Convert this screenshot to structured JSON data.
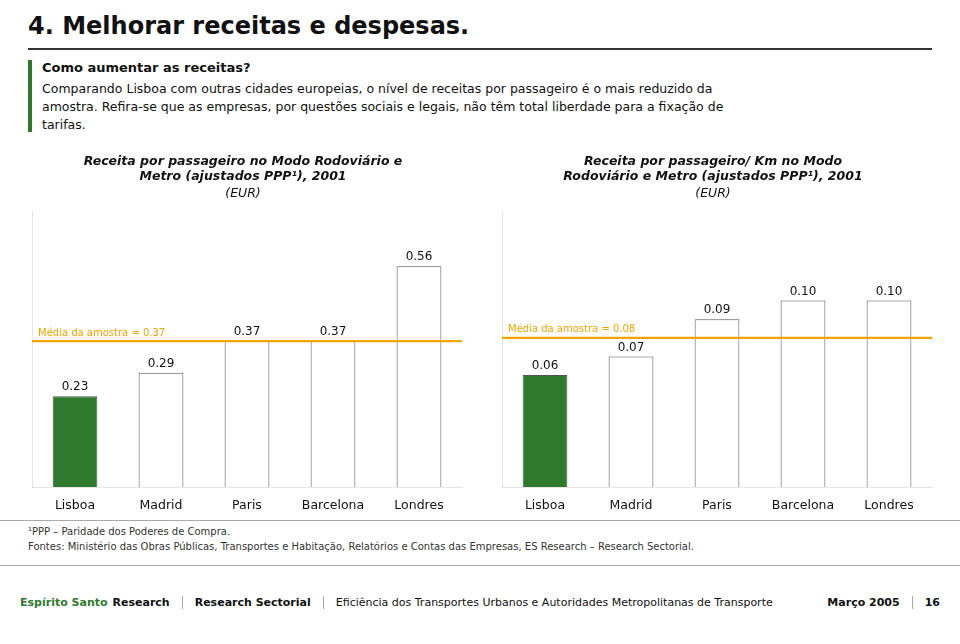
{
  "title": "4. Melhorar receitas e despesas.",
  "subtitle": "Como aumentar as receitas?",
  "text": [
    "Comparando Lisboa com outras cidades europeias, o nível de receitas por passageiro é o mais reduzido da",
    "amostra. Refira-se que as empresas, por questões sociais e legais, não têm total liberdade para a fixação de",
    "tarifas."
  ],
  "chart_data": [
    {
      "type": "bar",
      "title": [
        "Receita por passageiro no Modo Rodoviário e",
        "Metro (ajustados PPP¹), 2001"
      ],
      "subtitle": "(EUR)",
      "categories": [
        "Lisboa",
        "Madrid",
        "Paris",
        "Barcelona",
        "Londres"
      ],
      "values": [
        0.23,
        0.29,
        0.37,
        0.37,
        0.56
      ],
      "colors": [
        "#2d7a2d",
        "#ffffff",
        "#ffffff",
        "#ffffff",
        "#ffffff"
      ],
      "ylim": [
        0,
        0.7
      ],
      "lines": [
        {
          "value": 0.37,
          "label": "Média da amostra = 0.37",
          "color": "#f0a500"
        }
      ],
      "data_labels": true,
      "tick_labels": "x",
      "grid": false
    },
    {
      "type": "bar",
      "title": [
        "Receita por passageiro/ Km no Modo",
        "Rodoviário e Metro (ajustados PPP¹), 2001"
      ],
      "subtitle": "(EUR)",
      "categories": [
        "Lisboa",
        "Madrid",
        "Paris",
        "Barcelona",
        "Londres"
      ],
      "values": [
        0.06,
        0.07,
        0.09,
        0.1,
        0.1
      ],
      "value_labels": [
        "0.06",
        "0.07",
        "0.09",
        "0.10",
        "0.10"
      ],
      "colors": [
        "#2d7a2d",
        "#ffffff",
        "#ffffff",
        "#ffffff",
        "#ffffff"
      ],
      "ylim": [
        0,
        0.148
      ],
      "lines": [
        {
          "value": 0.08,
          "label": "Média da amostra = 0.08",
          "color": "#f0a500"
        }
      ],
      "data_labels": true,
      "tick_labels": "x",
      "grid": false
    }
  ],
  "notes": [
    "¹PPP – Paridade dos Poderes de Compra.",
    "Fontes: Ministério das Obras Públicas, Transportes e Habitação, Relatórios e Contas das Empresas, ES Research – Research Sectorial."
  ],
  "footer": {
    "logo": [
      "Espírito Santo",
      "Research"
    ],
    "items": [
      "Research Sectorial",
      "Eficiência dos Transportes Urbanos e Autoridades Metropolitanas de Transporte",
      "Março 2005",
      "16"
    ]
  }
}
